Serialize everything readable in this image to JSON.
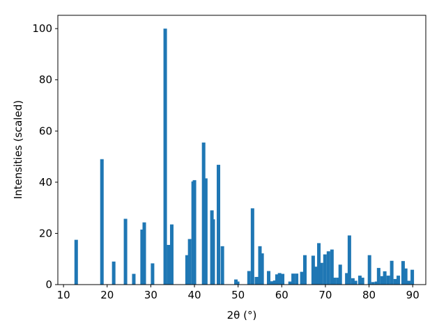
{
  "chart_data": {
    "type": "bar",
    "xlabel": "2θ (°)",
    "ylabel": "Intensities (scaled)",
    "color": "#1f77b4",
    "grid": false,
    "x": [
      12.9,
      18.8,
      21.5,
      24.2,
      26.1,
      28.0,
      28.5,
      30.4,
      33.3,
      34.1,
      34.8,
      38.3,
      38.9,
      39.7,
      40.0,
      42.1,
      42.6,
      44.0,
      44.3,
      45.5,
      46.4,
      49.5,
      49.9,
      52.5,
      53.3,
      54.2,
      55.0,
      55.5,
      57.0,
      57.8,
      58.4,
      58.9,
      59.5,
      60.2,
      61.9,
      62.6,
      63.4,
      64.6,
      65.3,
      67.2,
      67.8,
      68.5,
      69.1,
      69.9,
      70.7,
      71.5,
      72.1,
      72.9,
      73.4,
      74.9,
      75.5,
      76.3,
      76.9,
      77.9,
      78.5,
      80.1,
      80.9,
      81.7,
      82.2,
      83.0,
      83.6,
      84.4,
      85.2,
      86.0,
      86.7,
      87.8,
      88.4,
      89.1,
      89.9
    ],
    "values": [
      17.5,
      49,
      9,
      25.7,
      4.2,
      21.5,
      24.3,
      8.3,
      100,
      15.5,
      23.5,
      11.5,
      17.8,
      40.3,
      40.8,
      55.5,
      41.5,
      29,
      25.5,
      46.8,
      15,
      2,
      1.2,
      5.3,
      29.8,
      3,
      15,
      12.2,
      5.3,
      1.3,
      1.6,
      4,
      4.5,
      4.2,
      1.2,
      4.3,
      4.3,
      5,
      11.5,
      11.3,
      7,
      16.2,
      8.5,
      11.8,
      13,
      13.7,
      2.7,
      2.7,
      7.8,
      4.5,
      19.2,
      2.5,
      1.5,
      3.5,
      2.7,
      11.5,
      1,
      1.2,
      6.5,
      3.3,
      5.2,
      3.5,
      9.3,
      2.2,
      3.5,
      9.2,
      6.3,
      1.5,
      5.8
    ],
    "xlim": [
      8.7,
      93.0
    ],
    "ylim": [
      0,
      105.2
    ],
    "xticks": [
      10,
      20,
      30,
      40,
      50,
      60,
      70,
      80,
      90
    ],
    "yticks": [
      0,
      20,
      40,
      60,
      80,
      100
    ]
  }
}
